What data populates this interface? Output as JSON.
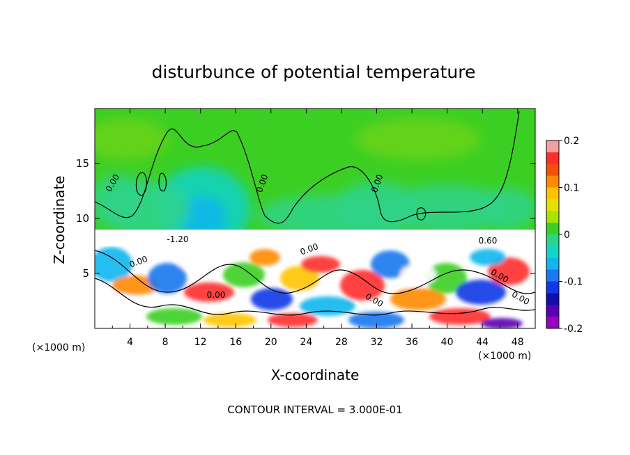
{
  "chart_data": {
    "type": "heatmap",
    "title": "disturbunce of potential temperature",
    "xlabel": "X-coordinate",
    "ylabel": "Z-coordinate",
    "x_unit": "(×1000 m)",
    "y_unit": "(×1000 m)",
    "xlim": [
      0,
      50
    ],
    "ylim": [
      0,
      20
    ],
    "x_ticks": [
      4,
      8,
      12,
      16,
      20,
      24,
      28,
      32,
      36,
      40,
      44,
      48
    ],
    "y_ticks": [
      5,
      10,
      15
    ],
    "colorbar": {
      "min": -0.2,
      "max": 0.2,
      "ticks": [
        0.2,
        0.1,
        0,
        -0.1,
        -0.2
      ],
      "colors": [
        "#f5a0a0",
        "#ff2d2d",
        "#f5500a",
        "#ff8a00",
        "#ffc400",
        "#e4e000",
        "#a8e400",
        "#3ccf23",
        "#2ed48a",
        "#12d4c8",
        "#10b6ee",
        "#1a78f0",
        "#1238e6",
        "#1010aa",
        "#5a00b4",
        "#9a00c0"
      ]
    },
    "contour_labels": [
      "0.00",
      "0.00",
      "0.00",
      "0.00",
      "0.00",
      "0.00",
      "0.00",
      "0.00",
      "0.00",
      "-1.20",
      "0.60"
    ],
    "footer": "CONTOUR INTERVAL = 3.000E-01"
  }
}
